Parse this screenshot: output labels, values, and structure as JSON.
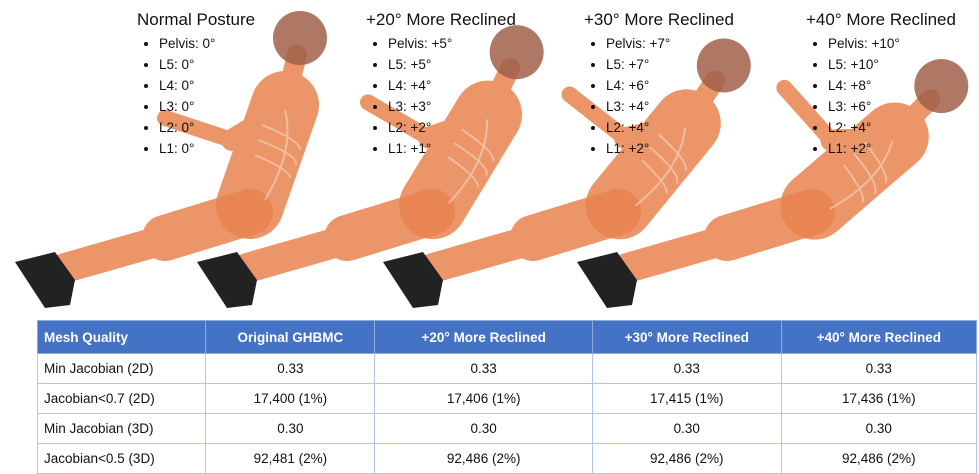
{
  "postures": [
    {
      "title": "Normal Posture",
      "items": [
        "Pelvis: 0°",
        "L5: 0°",
        "L4: 0°",
        "L3: 0°",
        "L2: 0°",
        "L1: 0°"
      ]
    },
    {
      "title": "+20° More Reclined",
      "items": [
        "Pelvis: +5°",
        "L5: +5°",
        "L4: +4°",
        "L3: +3°",
        "L2: +2°",
        "L1: +1°"
      ]
    },
    {
      "title": "+30° More Reclined",
      "items": [
        "Pelvis: +7°",
        "L5: +7°",
        "L4: +6°",
        "L3: +4°",
        "L2: +4°",
        "L1: +2°"
      ]
    },
    {
      "title": "+40° More Reclined",
      "items": [
        "Pelvis: +10°",
        "L5: +10°",
        "L4: +8°",
        "L3: +6°",
        "L2: +4°",
        "L1: +2°"
      ]
    }
  ],
  "table": {
    "header": [
      "Mesh Quality",
      "Original GHBMC",
      "+20° More Reclined",
      "+30° More Reclined",
      "+40° More Reclined"
    ],
    "rows": [
      [
        "Min Jacobian (2D)",
        "0.33",
        "0.33",
        "0.33",
        "0.33"
      ],
      [
        "Jacobian<0.7 (2D)",
        "17,400 (1%)",
        "17,406 (1%)",
        "17,415 (1%)",
        "17,436 (1%)"
      ],
      [
        "Min Jacobian (3D)",
        "0.30",
        "0.30",
        "0.30",
        "0.30"
      ],
      [
        "Jacobian<0.5 (3D)",
        "92,481 (2%)",
        "92,486 (2%)",
        "92,486 (2%)",
        "92,486 (2%)"
      ]
    ]
  }
}
